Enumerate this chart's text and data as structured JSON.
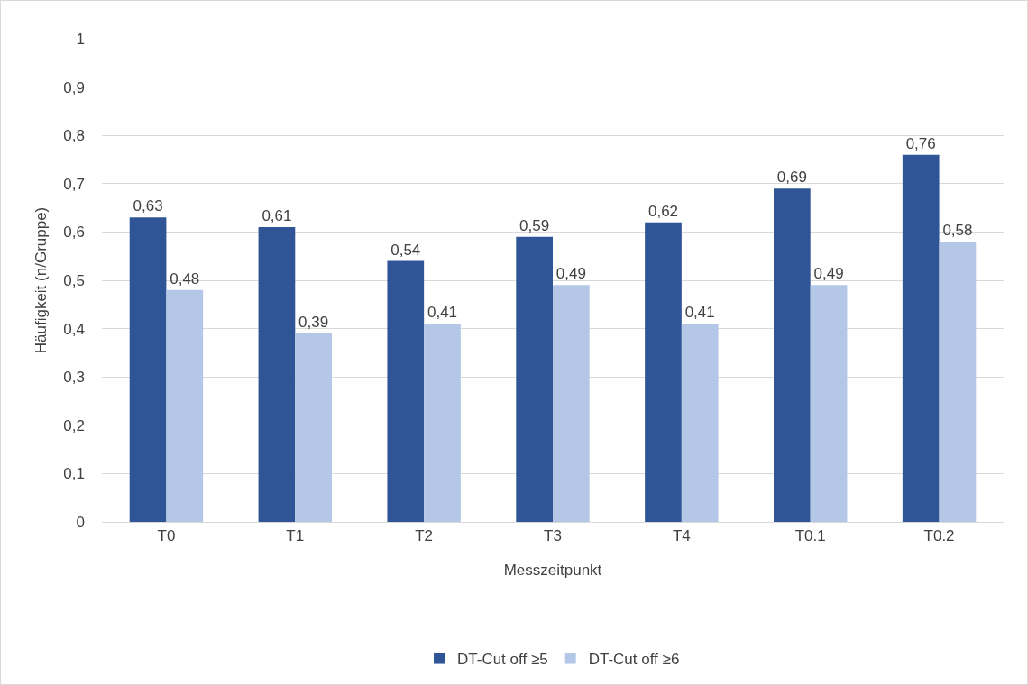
{
  "chart_data": {
    "type": "bar",
    "xlabel": "Messzeitpunkt",
    "ylabel": "Häufigkeit (n/Gruppe)",
    "categories": [
      "T0",
      "T1",
      "T2",
      "T3",
      "T4",
      "T0.1",
      "T0.2"
    ],
    "series": [
      {
        "name": "DT-Cut off ≥5",
        "color": "#2f5597",
        "values": [
          0.63,
          0.61,
          0.54,
          0.59,
          0.62,
          0.69,
          0.76
        ],
        "value_labels": [
          "0,63",
          "0,61",
          "0,54",
          "0,59",
          "0,62",
          "0,69",
          "0,76"
        ]
      },
      {
        "name": "DT-Cut off ≥6",
        "color": "#b4c7e7",
        "values": [
          0.48,
          0.39,
          0.41,
          0.49,
          0.41,
          0.49,
          0.58
        ],
        "value_labels": [
          "0,48",
          "0,39",
          "0,41",
          "0,49",
          "0,41",
          "0,49",
          "0,58"
        ]
      }
    ],
    "ylim": [
      0,
      1
    ],
    "yticks": [
      0,
      {
        "value": 0.1,
        "label": "0,1"
      },
      {
        "value": 0.2,
        "label": "0,2"
      },
      {
        "value": 0.3,
        "label": "0,3"
      },
      {
        "value": 0.4,
        "label": "0,4"
      },
      {
        "value": 0.5,
        "label": "0,5"
      },
      {
        "value": 0.6,
        "label": "0,6"
      },
      {
        "value": 0.7,
        "label": "0,7"
      },
      {
        "value": 0.8,
        "label": "0,8"
      },
      {
        "value": 0.9,
        "label": "0,9"
      },
      1
    ],
    "grid": "y",
    "legend": "bottom"
  }
}
